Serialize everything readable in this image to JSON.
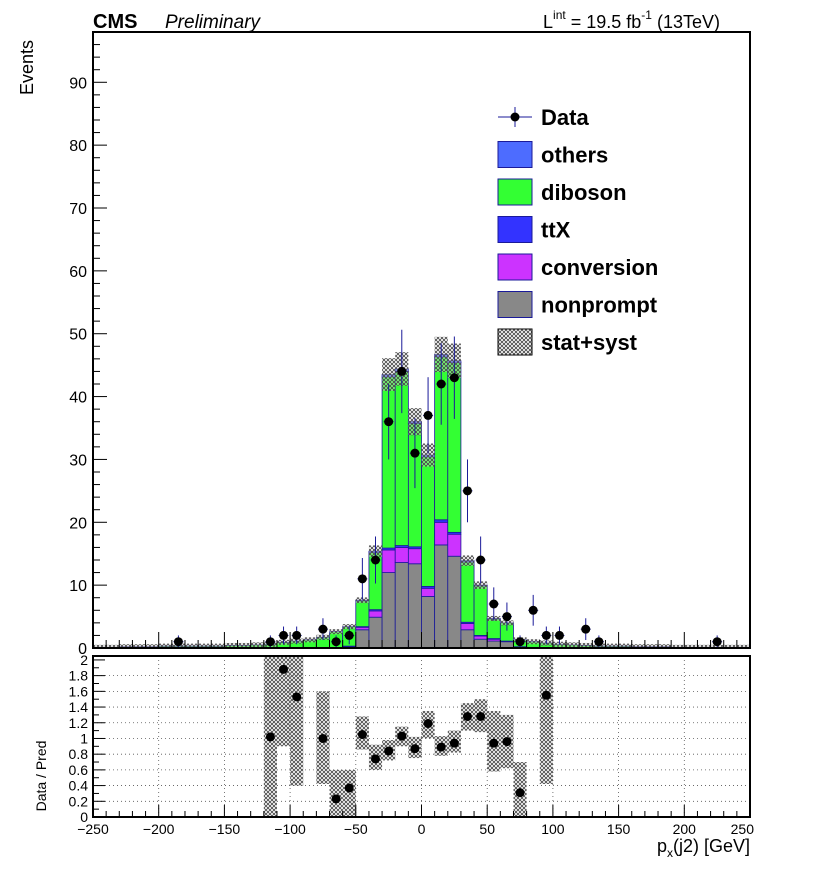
{
  "header": {
    "experiment": "CMS",
    "status": "Preliminary",
    "lumi_prefix": "L",
    "lumi_sup": "int",
    "lumi_mid": " = 19.5 fb",
    "lumi_exp": "-1",
    "lumi_suffix": " (13TeV)"
  },
  "colors": {
    "others": "#4d6cff",
    "diboson": "#33ff33",
    "ttX": "#3333ff",
    "conversion": "#cc33ff",
    "nonprompt": "#888888",
    "edge": "#1a1a99",
    "data": "#000000",
    "error_bar": "#1a1a99"
  },
  "chart_data": [
    {
      "type": "bar",
      "stacked": true,
      "xlabel_main": "p",
      "xlabel_sub": "x",
      "xlabel_rest": "(j2) [GeV]",
      "ylabel": "Events",
      "xlim": [
        -250,
        250
      ],
      "ylim": [
        0,
        98
      ],
      "x_ticks": [
        -250,
        -200,
        -150,
        -100,
        -50,
        0,
        50,
        100,
        150,
        200,
        250
      ],
      "x_tick_labels": [
        "−250",
        "−200",
        "−150",
        "−100",
        "−50",
        "0",
        "50",
        "100",
        "150",
        "200",
        "250"
      ],
      "y_ticks": [
        0,
        10,
        20,
        30,
        40,
        50,
        60,
        70,
        80,
        90
      ],
      "y_tick_labels": [
        "0",
        "10",
        "20",
        "30",
        "40",
        "50",
        "60",
        "70",
        "80",
        "90"
      ],
      "bin_width": 10,
      "bin_low_edges": [
        -250,
        -240,
        -230,
        -220,
        -210,
        -200,
        -190,
        -180,
        -170,
        -160,
        -150,
        -140,
        -130,
        -120,
        -110,
        -100,
        -90,
        -80,
        -70,
        -60,
        -50,
        -40,
        -30,
        -20,
        -10,
        0,
        10,
        20,
        30,
        40,
        50,
        60,
        70,
        80,
        90,
        100,
        110,
        120,
        130,
        140,
        150,
        160,
        170,
        180,
        190,
        200,
        210,
        220,
        230,
        240
      ],
      "legend": {
        "position": "top-right",
        "entries": [
          "Data",
          "others",
          "diboson",
          "ttX",
          "conversion",
          "nonprompt",
          "stat+syst"
        ]
      },
      "series": [
        {
          "name": "nonprompt",
          "values": [
            0,
            0,
            0,
            0,
            0,
            0,
            0,
            0,
            0,
            0,
            0,
            0,
            0,
            0,
            0,
            0,
            0,
            0,
            0,
            0.2,
            2.9,
            4.9,
            12,
            13.6,
            13.4,
            8.2,
            16.4,
            14.6,
            2.9,
            1.4,
            1.1,
            1.0,
            0.2,
            0.1,
            0,
            0,
            0,
            0,
            0,
            0,
            0,
            0,
            0,
            0,
            0,
            0,
            0,
            0,
            0,
            0
          ]
        },
        {
          "name": "conversion",
          "values": [
            0,
            0,
            0,
            0,
            0,
            0,
            0,
            0,
            0,
            0,
            0,
            0,
            0,
            0,
            0,
            0,
            0,
            0,
            0,
            0.1,
            0.4,
            1.0,
            3.6,
            2.4,
            2.4,
            1.3,
            3.6,
            3.5,
            1.0,
            0.5,
            0.3,
            0.1,
            0,
            0,
            0,
            0,
            0,
            0,
            0,
            0,
            0,
            0,
            0,
            0,
            0,
            0,
            0,
            0,
            0,
            0
          ]
        },
        {
          "name": "ttX",
          "values": [
            0,
            0,
            0,
            0,
            0,
            0,
            0,
            0,
            0,
            0,
            0,
            0,
            0,
            0,
            0,
            0,
            0,
            0,
            0,
            0,
            0.1,
            0.2,
            0.3,
            0.3,
            0.3,
            0.3,
            0.4,
            0.3,
            0.2,
            0.1,
            0.1,
            0,
            0,
            0,
            0,
            0,
            0,
            0,
            0,
            0,
            0,
            0,
            0,
            0,
            0,
            0,
            0,
            0,
            0,
            0
          ]
        },
        {
          "name": "diboson",
          "values": [
            0.1,
            0.1,
            0.2,
            0.2,
            0.2,
            0.3,
            0.3,
            0.3,
            0.3,
            0.3,
            0.4,
            0.4,
            0.5,
            0.6,
            0.9,
            1.1,
            1.3,
            1.7,
            2.6,
            3.1,
            4.1,
            9.1,
            27.2,
            27.7,
            19.6,
            20.6,
            25.9,
            27.0,
            9.6,
            7.9,
            3.1,
            2.9,
            1.1,
            0.9,
            0.8,
            0.6,
            0.5,
            0.4,
            0.3,
            0.3,
            0.3,
            0.2,
            0.2,
            0.2,
            0.1,
            0.1,
            0.1,
            0.1,
            0.1,
            0.1
          ]
        },
        {
          "name": "others",
          "values": [
            0,
            0,
            0,
            0,
            0,
            0,
            0,
            0,
            0,
            0,
            0,
            0,
            0,
            0,
            0,
            0,
            0,
            0,
            0,
            0,
            0.1,
            0.2,
            0.4,
            0.4,
            0.3,
            0.3,
            0.4,
            0.3,
            0.2,
            0.1,
            0.1,
            0,
            0,
            0,
            0,
            0,
            0,
            0,
            0,
            0,
            0,
            0,
            0,
            0,
            0,
            0,
            0,
            0,
            0,
            0
          ]
        },
        {
          "name": "Data",
          "x": [
            -185,
            -115,
            -105,
            -95,
            -75,
            -65,
            -55,
            -45,
            -35,
            -25,
            -15,
            -5,
            5,
            15,
            25,
            35,
            45,
            55,
            65,
            75,
            85,
            95,
            105,
            125,
            135,
            225
          ],
          "values": [
            1,
            1,
            2,
            2,
            3,
            1,
            2,
            11,
            14,
            36,
            44,
            31,
            37,
            42,
            43,
            25,
            14,
            7,
            5,
            1,
            6,
            2,
            2,
            3,
            1,
            1
          ]
        }
      ]
    },
    {
      "type": "scatter",
      "ylabel": "Data / Pred",
      "ylim": [
        0,
        2.05
      ],
      "y_ticks": [
        0,
        0.2,
        0.4,
        0.6,
        0.8,
        1,
        1.2,
        1.4,
        1.6,
        1.8,
        2
      ],
      "y_tick_labels": [
        "0",
        "0.2",
        "0.4",
        "0.6",
        "0.8",
        "1",
        "1.2",
        "1.4",
        "1.6",
        "1.8",
        "2"
      ],
      "x": [
        -115,
        -105,
        -95,
        -75,
        -65,
        -55,
        -45,
        -35,
        -25,
        -15,
        -5,
        5,
        15,
        25,
        35,
        45,
        55,
        65,
        75,
        95
      ],
      "values": [
        1.02,
        1.88,
        1.53,
        1.0,
        0.23,
        0.37,
        1.05,
        0.74,
        0.84,
        1.03,
        0.87,
        1.19,
        0.89,
        0.94,
        1.28,
        1.28,
        0.94,
        0.96,
        0.31,
        1.55
      ],
      "band_x": [
        -115,
        -105,
        -95,
        -75,
        -65,
        -55,
        -45,
        -35,
        -25,
        -15,
        -5,
        5,
        15,
        25,
        35,
        45,
        55,
        65,
        75,
        95
      ],
      "band_lo": [
        0,
        0.9,
        0.4,
        0.42,
        0,
        0,
        0.86,
        0.6,
        0.72,
        0.9,
        0.75,
        1.0,
        0.78,
        0.82,
        1.1,
        1.08,
        0.58,
        0.62,
        0,
        0.42
      ],
      "band_hi": [
        2.05,
        2.05,
        2.05,
        1.6,
        0.6,
        0.6,
        1.28,
        0.92,
        0.98,
        1.15,
        1.02,
        1.35,
        1.03,
        1.1,
        1.45,
        1.5,
        1.35,
        1.3,
        0.7,
        2.05
      ]
    }
  ]
}
